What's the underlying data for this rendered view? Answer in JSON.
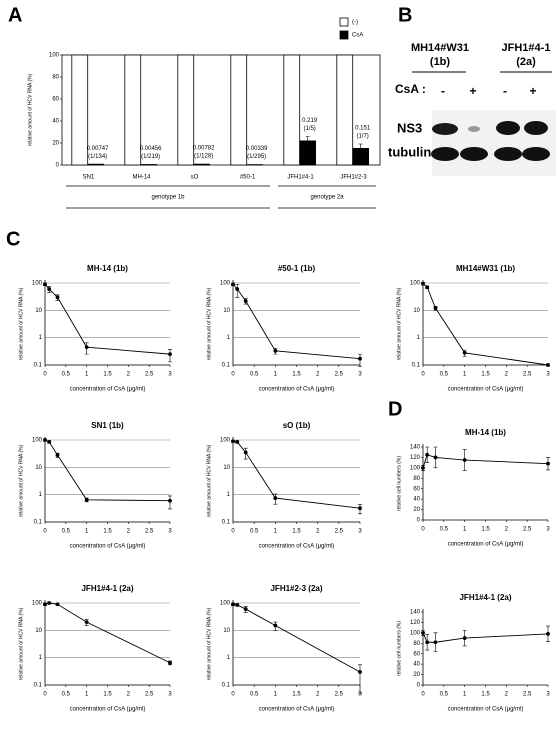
{
  "panel_labels": [
    "A",
    "B",
    "C",
    "D"
  ],
  "blot": {
    "samples": [
      {
        "name": "MH14#W31",
        "genotype": "(1b)"
      },
      {
        "name": "JFH1#4-1",
        "genotype": "(2a)"
      }
    ],
    "treatment_label": "CsA :",
    "lanes": [
      "-",
      "+",
      "-",
      "+"
    ],
    "rows": [
      "NS3",
      "tubulin"
    ]
  },
  "chart_data": [
    {
      "type": "bar",
      "ylabel": "relative amount of HCV RNA (%)",
      "categories": [
        "SN1",
        "MH-14",
        "sO",
        "#50-1",
        "JFH1#4-1",
        "JFH1#2-3"
      ],
      "groups": [
        {
          "name": "genotype 1b",
          "categories": [
            "SN1",
            "MH-14",
            "sO",
            "#50-1"
          ]
        },
        {
          "name": "genotype 2a",
          "categories": [
            "JFH1#4-1",
            "JFH1#2-3"
          ]
        }
      ],
      "series": [
        {
          "name": "(-)",
          "color": "#ffffff",
          "values": [
            100,
            100,
            100,
            100,
            100,
            100
          ]
        },
        {
          "name": "CsA",
          "color": "#000000",
          "values": [
            0.747,
            0.456,
            0.782,
            0.339,
            21.9,
            15.1
          ],
          "value_labels": [
            "0.00747",
            "0.00456",
            "0.00782",
            "0.00339",
            "0.219",
            "0.151"
          ],
          "ratio_labels": [
            "(1/134)",
            "(1/219)",
            "(1/128)",
            "(1/295)",
            "(1/5)",
            "(1/7)"
          ],
          "errors": [
            null,
            null,
            null,
            null,
            4,
            4
          ]
        }
      ],
      "ylim": [
        0,
        100
      ],
      "yticks": [
        0,
        20,
        40,
        60,
        80,
        100
      ],
      "grid": false,
      "legend": "upper right"
    },
    {
      "type": "line",
      "title": "MH-14 (1b)",
      "x": [
        0,
        0.1,
        0.3,
        1,
        3
      ],
      "values": [
        90,
        60,
        30,
        0.45,
        0.25
      ],
      "errors": [
        10,
        15,
        7,
        0.2,
        0.12
      ],
      "xlabel": "concentration of CsA (μg/ml)",
      "ylabel": "relative amount of HCV RNA (%)",
      "xlim": [
        0,
        3
      ],
      "xticks": [
        0,
        0.5,
        1,
        1.5,
        2,
        2.5,
        3
      ],
      "ylim": [
        0.1,
        100
      ],
      "yticks": [
        0.1,
        1,
        10,
        100
      ],
      "log": true,
      "grid": true,
      "color": "#000000"
    },
    {
      "type": "line",
      "title": "#50-1 (1b)",
      "x": [
        0,
        0.1,
        0.3,
        1,
        3
      ],
      "values": [
        90,
        60,
        22,
        0.33,
        0.17
      ],
      "errors": [
        10,
        30,
        5,
        0.08,
        0.08
      ],
      "xlabel": "concentration of CsA (μg/ml)",
      "ylabel": "relative amount of HCV RNA (%)",
      "xlim": [
        0,
        3
      ],
      "xticks": [
        0,
        0.5,
        1,
        1.5,
        2,
        2.5,
        3
      ],
      "ylim": [
        0.1,
        100
      ],
      "yticks": [
        0.1,
        1,
        10,
        100
      ],
      "log": true,
      "grid": true,
      "color": "#000000"
    },
    {
      "type": "line",
      "title": "MH14#W31 (1b)",
      "x": [
        0,
        0.1,
        0.3,
        1,
        3
      ],
      "values": [
        95,
        70,
        12,
        0.28,
        0.1
      ],
      "errors": [
        10,
        8,
        2,
        0.07,
        0.01
      ],
      "xlabel": "concentration of CsA (μg/ml)",
      "ylabel": "relative amount of HCV RNA (%)",
      "xlim": [
        0,
        3
      ],
      "xticks": [
        0,
        0.5,
        1,
        1.5,
        2,
        2.5,
        3
      ],
      "ylim": [
        0.1,
        100
      ],
      "yticks": [
        0.1,
        1,
        10,
        100
      ],
      "log": true,
      "grid": true,
      "color": "#000000"
    },
    {
      "type": "line",
      "title": "SN1 (1b)",
      "x": [
        0,
        0.1,
        0.3,
        1,
        3
      ],
      "values": [
        100,
        85,
        28,
        0.65,
        0.6
      ],
      "errors": [
        10,
        8,
        5,
        0.1,
        0.3
      ],
      "xlabel": "concentration of CsA (μg/ml)",
      "ylabel": "relative amount of HCV RNA (%)",
      "xlim": [
        0,
        3
      ],
      "xticks": [
        0,
        0.5,
        1,
        1.5,
        2,
        2.5,
        3
      ],
      "ylim": [
        0.1,
        100
      ],
      "yticks": [
        0.1,
        1,
        10,
        100
      ],
      "log": true,
      "grid": true,
      "color": "#000000"
    },
    {
      "type": "line",
      "title": "sO (1b)",
      "x": [
        0,
        0.1,
        0.3,
        1,
        3
      ],
      "values": [
        90,
        85,
        35,
        0.75,
        0.32
      ],
      "errors": [
        8,
        8,
        15,
        0.3,
        0.12
      ],
      "xlabel": "concentration of CsA (μg/ml)",
      "ylabel": "relative amount of HCV RNA (%)",
      "xlim": [
        0,
        3
      ],
      "xticks": [
        0,
        0.5,
        1,
        1.5,
        2,
        2.5,
        3
      ],
      "ylim": [
        0.1,
        100
      ],
      "yticks": [
        0.1,
        1,
        10,
        100
      ],
      "log": true,
      "grid": true,
      "color": "#000000"
    },
    {
      "type": "line",
      "title": "JFH1#4-1 (2a)",
      "x": [
        0,
        0.1,
        0.3,
        1,
        3
      ],
      "values": [
        90,
        100,
        90,
        20,
        0.65
      ],
      "errors": [
        10,
        8,
        5,
        5,
        0.1
      ],
      "xlabel": "concentration of CsA (μg/ml)",
      "ylabel": "relative amount of HCV RNA (%)",
      "xlim": [
        0,
        3
      ],
      "xticks": [
        0,
        0.5,
        1,
        1.5,
        2,
        2.5,
        3
      ],
      "ylim": [
        0.1,
        100
      ],
      "yticks": [
        0.1,
        1,
        10,
        100
      ],
      "log": true,
      "grid": true,
      "color": "#000000"
    },
    {
      "type": "line",
      "title": "JFH1#2-3 (2a)",
      "x": [
        0,
        0.1,
        0.3,
        1,
        3
      ],
      "values": [
        90,
        85,
        60,
        15,
        0.3
      ],
      "errors": [
        10,
        8,
        15,
        5,
        0.25
      ],
      "xlabel": "concentration of CsA (μg/ml)",
      "ylabel": "relative amount of HCV RNA (%)",
      "xlim": [
        0,
        3
      ],
      "xticks": [
        0,
        0.5,
        1,
        1.5,
        2,
        2.5,
        3
      ],
      "ylim": [
        0.1,
        100
      ],
      "yticks": [
        0.1,
        1,
        10,
        100
      ],
      "log": true,
      "grid": true,
      "color": "#000000"
    },
    {
      "type": "line",
      "title": "MH-14 (1b)",
      "x": [
        0,
        0.1,
        0.3,
        1,
        3
      ],
      "values": [
        100,
        125,
        120,
        115,
        108
      ],
      "errors": [
        5,
        15,
        20,
        20,
        12
      ],
      "xlabel": "concentration of CsA (μg/ml)",
      "ylabel": "relative cell numbers (%)",
      "xlim": [
        0,
        3
      ],
      "xticks": [
        0,
        0.5,
        1,
        1.5,
        2,
        2.5,
        3
      ],
      "ylim": [
        0,
        140
      ],
      "yticks": [
        0,
        20,
        40,
        60,
        80,
        100,
        120,
        140
      ],
      "log": false,
      "grid": false,
      "color": "#000000"
    },
    {
      "type": "line",
      "title": "JFH1#4-1 (2a)",
      "x": [
        0,
        0.1,
        0.3,
        1,
        3
      ],
      "values": [
        100,
        82,
        82,
        90,
        98
      ],
      "errors": [
        5,
        15,
        18,
        15,
        15
      ],
      "xlabel": "concentration of CsA (μg/ml)",
      "ylabel": "relative cell numbers (%)",
      "xlim": [
        0,
        3
      ],
      "xticks": [
        0,
        0.5,
        1,
        1.5,
        2,
        2.5,
        3
      ],
      "ylim": [
        0,
        140
      ],
      "yticks": [
        0,
        20,
        40,
        60,
        80,
        100,
        120,
        140
      ],
      "log": false,
      "grid": false,
      "color": "#000000"
    }
  ]
}
